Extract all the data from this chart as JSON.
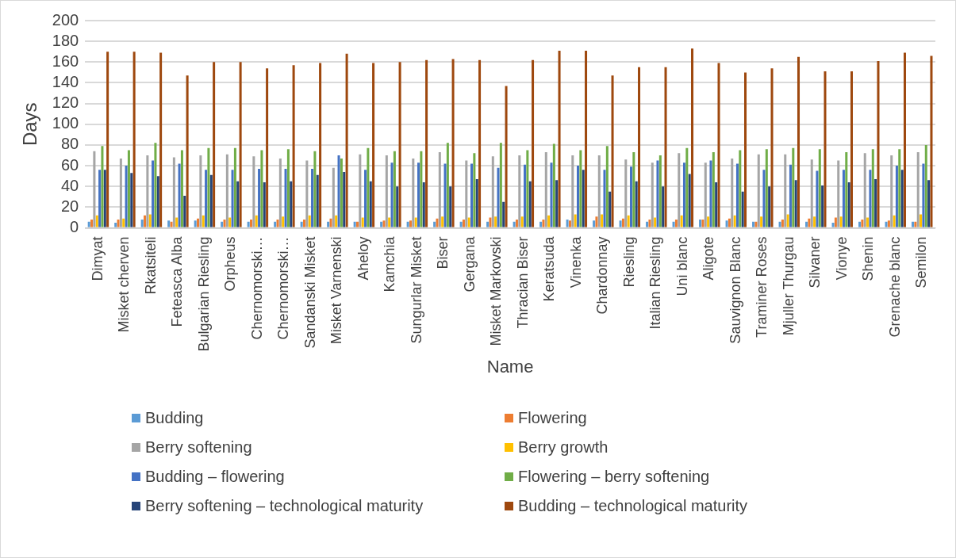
{
  "chart_data": {
    "type": "bar",
    "xlabel": "Name",
    "ylabel": "Days",
    "categories": [
      "Dimyat",
      "Misket cherven",
      "Rkatsiteli",
      "Feteasca Alba",
      "Bulgarian Riesling",
      "Orpheus",
      "Chernomorski…",
      "Chernomorski…",
      "Sandanski Misket",
      "Misket Varnenski",
      "Aheloy",
      "Kamchia",
      "Sungurlar Misket",
      "Biser",
      "Gergana",
      "Misket Markovski",
      "Thracian Biser",
      "Keratsuda",
      "Vinenka",
      "Chardonnay",
      "Riesling",
      "Italian Riesling",
      "Uni blanc",
      "Aligote",
      "Sauvignon Blanc",
      "Traminer Roses",
      "Mjuller Thurgau",
      "Silvaner",
      "Vionye",
      "Shenin",
      "Grenache blanc",
      "Semilon"
    ],
    "series": [
      {
        "name": "Budding",
        "color": "#5b9bd5",
        "values": [
          6,
          5,
          8,
          7,
          7,
          6,
          6,
          6,
          6,
          6,
          6,
          6,
          6,
          6,
          6,
          6,
          6,
          6,
          8,
          7,
          7,
          6,
          6,
          8,
          7,
          6,
          6,
          6,
          5,
          6,
          6,
          6
        ]
      },
      {
        "name": "Flowering",
        "color": "#ed7d31",
        "values": [
          8,
          8,
          12,
          6,
          9,
          8,
          8,
          8,
          8,
          9,
          6,
          7,
          7,
          9,
          8,
          10,
          8,
          8,
          7,
          11,
          9,
          8,
          8,
          8,
          9,
          6,
          8,
          9,
          10,
          8,
          7,
          6
        ]
      },
      {
        "name": "Berry softening",
        "color": "#a5a5a5",
        "values": [
          74,
          67,
          70,
          68,
          70,
          71,
          69,
          67,
          65,
          58,
          71,
          70,
          67,
          73,
          65,
          69,
          70,
          73,
          70,
          70,
          66,
          63,
          72,
          63,
          67,
          71,
          71,
          66,
          65,
          72,
          70,
          73
        ]
      },
      {
        "name": "Berry growth",
        "color": "#ffc000",
        "values": [
          12,
          9,
          13,
          10,
          12,
          10,
          12,
          11,
          12,
          12,
          10,
          10,
          10,
          11,
          10,
          11,
          11,
          12,
          13,
          13,
          12,
          10,
          12,
          11,
          12,
          11,
          13,
          11,
          11,
          10,
          12,
          13
        ]
      },
      {
        "name": "Budding – flowering",
        "color": "#4472c4",
        "values": [
          56,
          60,
          65,
          62,
          56,
          56,
          57,
          57,
          57,
          70,
          56,
          63,
          63,
          62,
          62,
          58,
          61,
          63,
          60,
          56,
          59,
          65,
          63,
          65,
          62,
          56,
          61,
          55,
          56,
          56,
          60,
          62
        ]
      },
      {
        "name": "Flowering – berry softening",
        "color": "#70ad47",
        "values": [
          79,
          75,
          82,
          75,
          77,
          77,
          75,
          76,
          74,
          67,
          77,
          74,
          74,
          82,
          72,
          82,
          75,
          81,
          75,
          79,
          73,
          70,
          77,
          73,
          75,
          76,
          77,
          76,
          73,
          76,
          76,
          80
        ]
      },
      {
        "name": "Berry softening – technological maturity",
        "color": "#264478",
        "values": [
          56,
          53,
          50,
          31,
          51,
          45,
          44,
          45,
          51,
          54,
          45,
          40,
          44,
          40,
          47,
          25,
          45,
          46,
          56,
          35,
          45,
          40,
          52,
          44,
          35,
          40,
          46,
          41,
          44,
          47,
          56,
          46
        ]
      },
      {
        "name": "Budding – technological maturity",
        "color": "#9e480e",
        "values": [
          170,
          170,
          169,
          147,
          160,
          160,
          154,
          157,
          159,
          168,
          159,
          160,
          162,
          163,
          162,
          137,
          162,
          171,
          171,
          147,
          155,
          155,
          173,
          159,
          150,
          154,
          165,
          151,
          151,
          161,
          169,
          166
        ]
      }
    ],
    "ylim": [
      0,
      200
    ],
    "yticks": [
      0,
      20,
      40,
      60,
      80,
      100,
      120,
      140,
      160,
      180,
      200
    ],
    "grid": "y",
    "legend": "bottom"
  }
}
